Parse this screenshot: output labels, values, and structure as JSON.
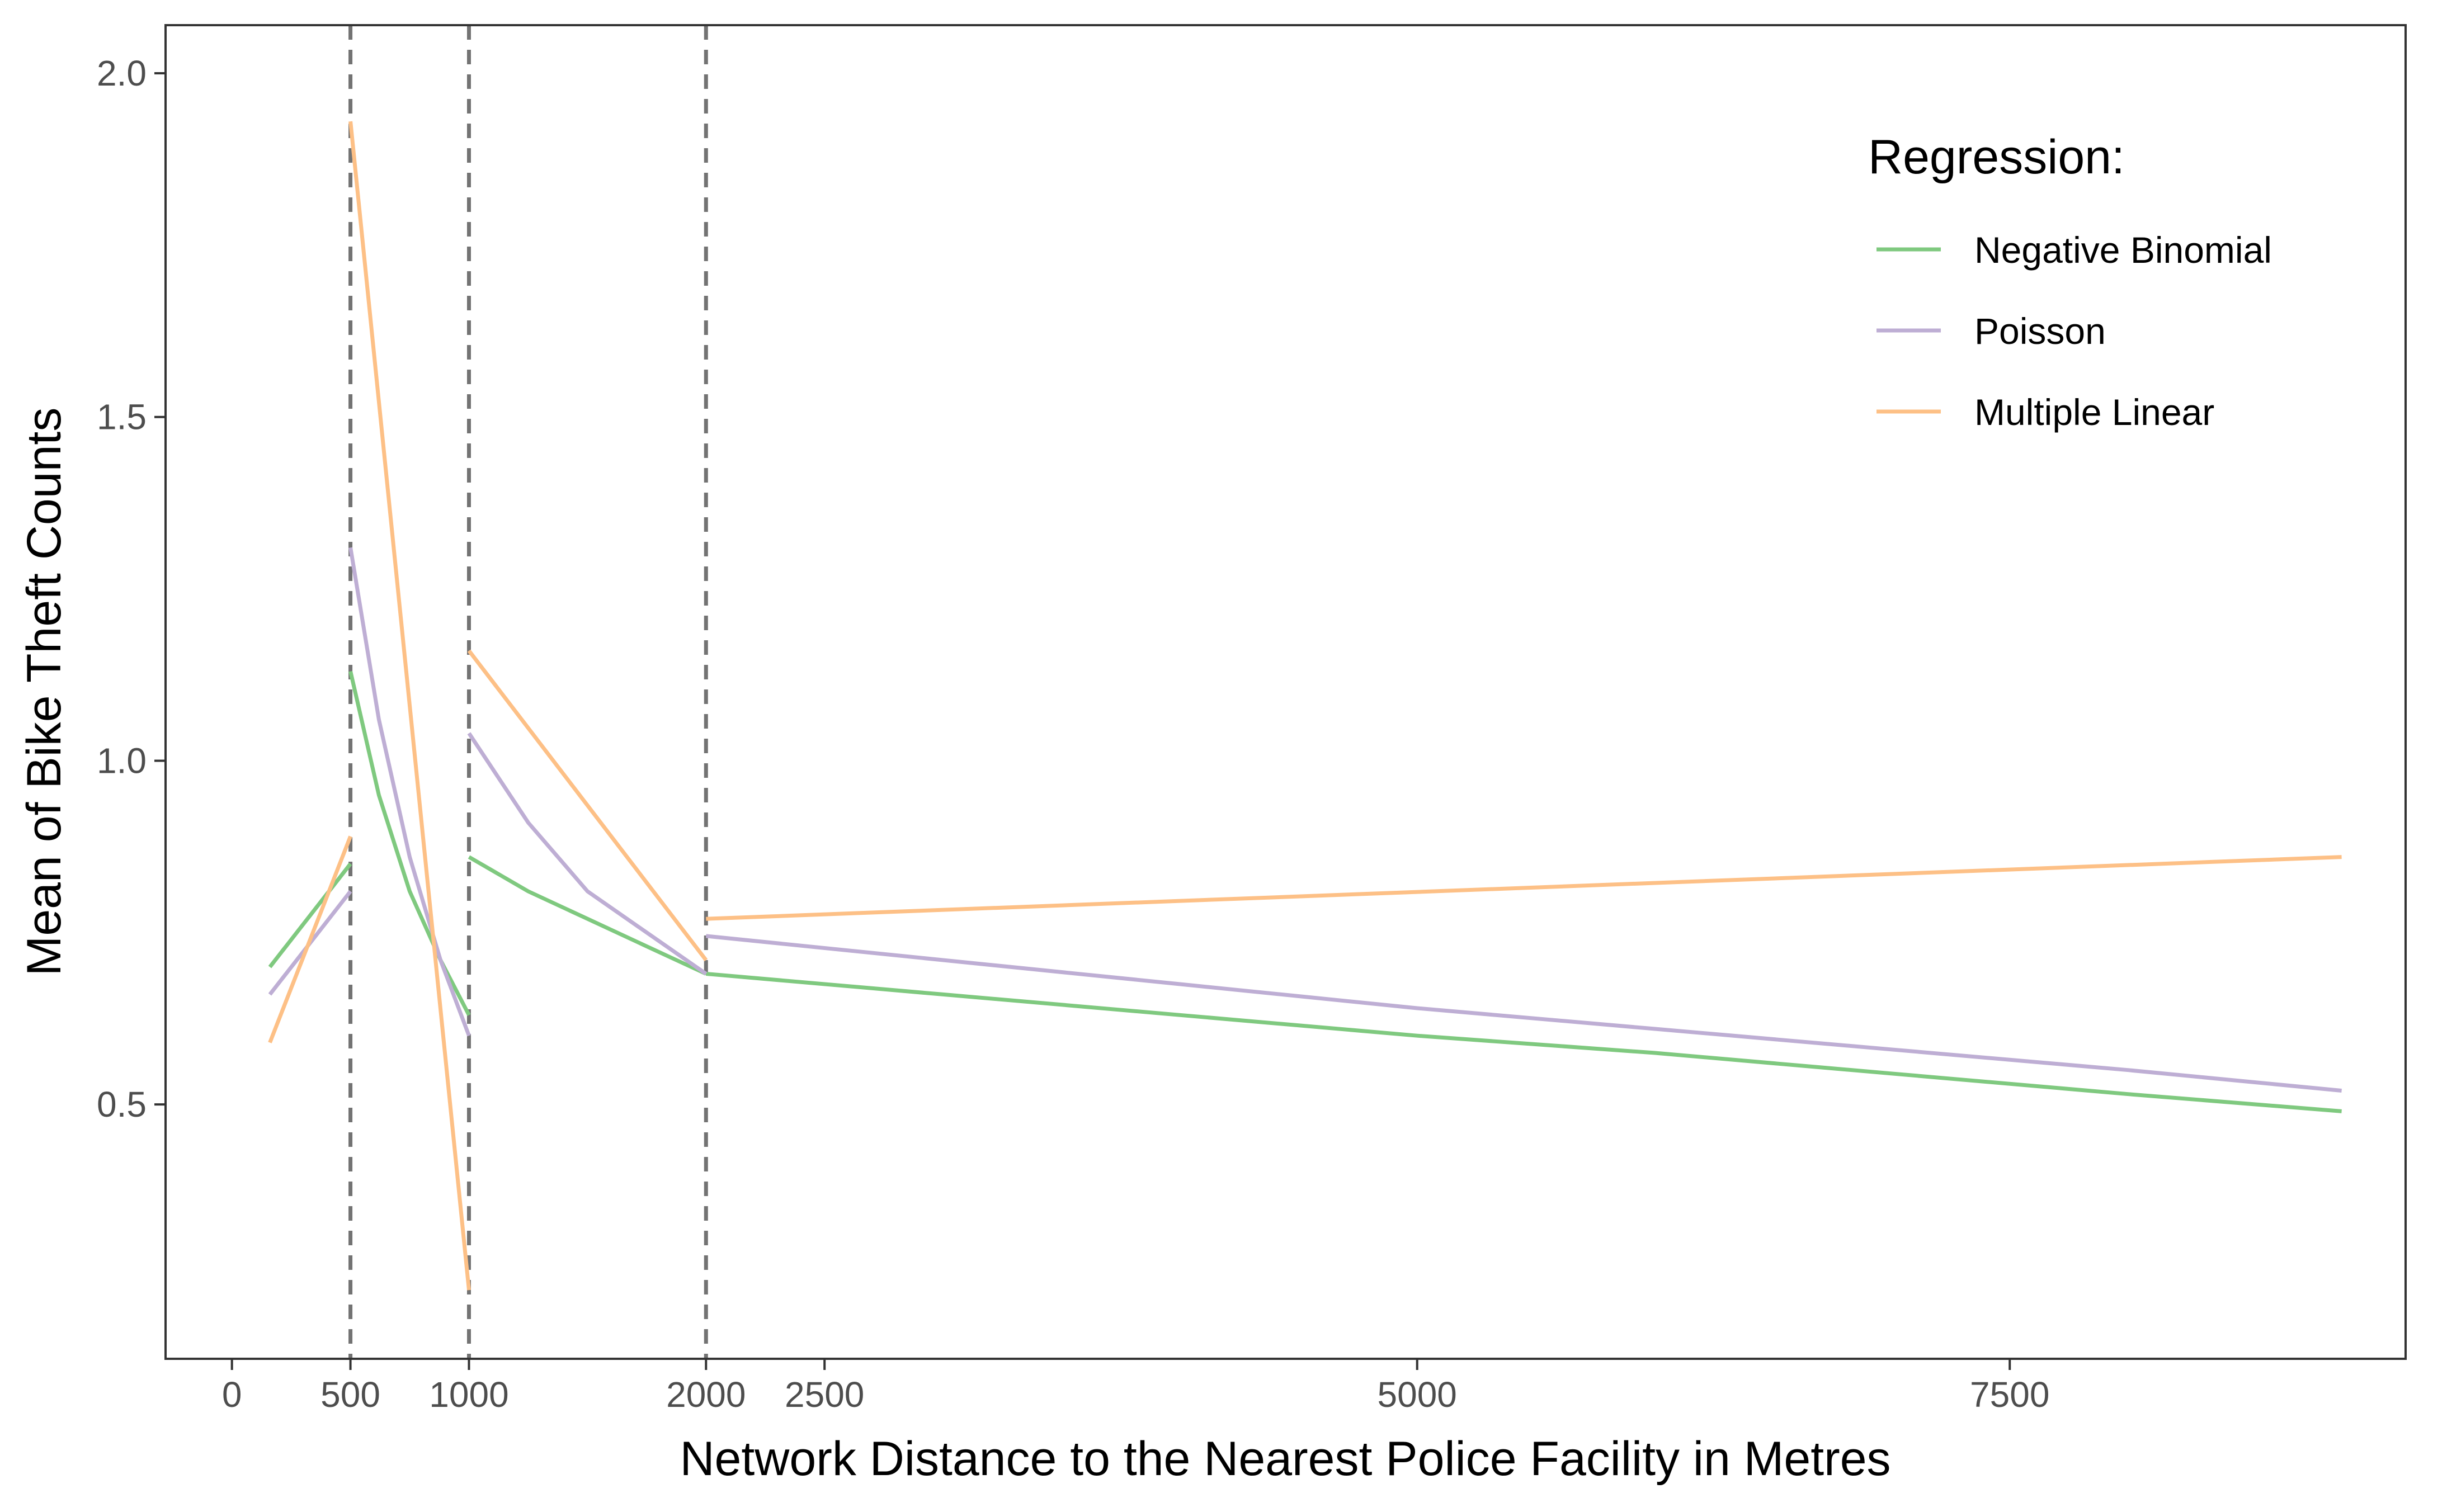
{
  "chart_data": {
    "type": "line",
    "xlabel": "Network Distance to the Nearest Police Facility in Metres",
    "ylabel": "Mean of Bike Theft Counts",
    "xlim": [
      -280,
      9170
    ],
    "ylim": [
      0.13,
      2.07
    ],
    "x_ticks": [
      0,
      500,
      1000,
      2000,
      2500,
      5000,
      7500
    ],
    "y_ticks": [
      0.5,
      1.0,
      1.5,
      2.0
    ],
    "y_tick_labels": [
      "0.5",
      "1.0",
      "1.5",
      "2.0"
    ],
    "vlines": [
      500,
      1000,
      2000
    ],
    "vline_style": "dashed",
    "grid": false,
    "legend": {
      "title": "Regression:",
      "placement": "top-right"
    },
    "series": [
      {
        "name": "Negative Binomial",
        "color": "#7fc97f",
        "segments": [
          {
            "x": [
              160,
              500
            ],
            "y": [
              0.7,
              0.85
            ]
          },
          {
            "x": [
              500,
              620,
              750,
              880,
              1000
            ],
            "y": [
              1.13,
              0.95,
              0.81,
              0.71,
              0.63
            ]
          },
          {
            "x": [
              1000,
              1250,
              1500,
              1750,
              2000
            ],
            "y": [
              0.86,
              0.81,
              0.77,
              0.73,
              0.69
            ]
          },
          {
            "x": [
              2000,
              3000,
              4000,
              5000,
              6000,
              7000,
              8000,
              8900
            ],
            "y": [
              0.69,
              0.66,
              0.63,
              0.6,
              0.575,
              0.545,
              0.515,
              0.49
            ]
          }
        ]
      },
      {
        "name": "Poisson",
        "color": "#beaed4",
        "segments": [
          {
            "x": [
              160,
              500
            ],
            "y": [
              0.66,
              0.81
            ]
          },
          {
            "x": [
              500,
              620,
              750,
              880,
              1000
            ],
            "y": [
              1.31,
              1.06,
              0.86,
              0.71,
              0.6
            ]
          },
          {
            "x": [
              1000,
              1250,
              1500,
              1750,
              2000
            ],
            "y": [
              1.04,
              0.91,
              0.81,
              0.75,
              0.69
            ]
          },
          {
            "x": [
              2000,
              3000,
              4000,
              5000,
              6000,
              7000,
              8000,
              8900
            ],
            "y": [
              0.745,
              0.71,
              0.675,
              0.64,
              0.61,
              0.58,
              0.55,
              0.52
            ]
          }
        ]
      },
      {
        "name": "Multiple Linear",
        "color": "#fdc086",
        "segments": [
          {
            "x": [
              160,
              500
            ],
            "y": [
              0.59,
              0.89
            ]
          },
          {
            "x": [
              500,
              1000
            ],
            "y": [
              1.93,
              0.23
            ]
          },
          {
            "x": [
              1000,
              2000
            ],
            "y": [
              1.16,
              0.71
            ]
          },
          {
            "x": [
              2000,
              8900
            ],
            "y": [
              0.77,
              0.86
            ]
          }
        ]
      }
    ]
  }
}
